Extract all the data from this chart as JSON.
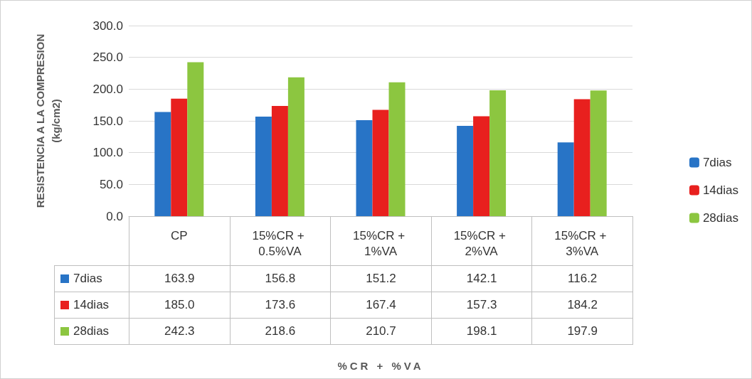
{
  "chart_data": {
    "type": "bar",
    "ylabel": "RESISTENCIA A LA COMPRESION\n(kg/cm2)",
    "categories": [
      "CP",
      "15%CR + 0.5%VA",
      "15%CR + 1%VA",
      "15%CR + 2%VA",
      "15%CR + 3%VA"
    ],
    "series": [
      {
        "name": "7dias",
        "color": "#2874c6",
        "values": [
          163.9,
          156.8,
          151.2,
          142.1,
          116.2
        ],
        "value_labels": [
          "163.9",
          "156.8",
          "151.2",
          "142.1",
          "116.2"
        ]
      },
      {
        "name": "14dias",
        "color": "#e8201e",
        "values": [
          185.0,
          173.6,
          167.4,
          157.3,
          184.2
        ],
        "value_labels": [
          "185.0",
          "173.6",
          "167.4",
          "157.3",
          "184.2"
        ]
      },
      {
        "name": "28dias",
        "color": "#8cc640",
        "values": [
          242.3,
          218.6,
          210.7,
          198.1,
          197.9
        ],
        "value_labels": [
          "242.3",
          "218.6",
          "210.7",
          "198.1",
          "197.9"
        ]
      }
    ],
    "ylim": [
      0,
      300
    ],
    "yticks": [
      {
        "value": 0,
        "label": "0.0"
      },
      {
        "value": 50,
        "label": "50.0"
      },
      {
        "value": 100,
        "label": "100.0"
      },
      {
        "value": 150,
        "label": "150.0"
      },
      {
        "value": 200,
        "label": "200.0"
      },
      {
        "value": 250,
        "label": "250.0"
      },
      {
        "value": 300,
        "label": "300.0"
      }
    ],
    "grid": "y",
    "legend": "right",
    "annotations": [
      "%CR + %VA"
    ]
  }
}
